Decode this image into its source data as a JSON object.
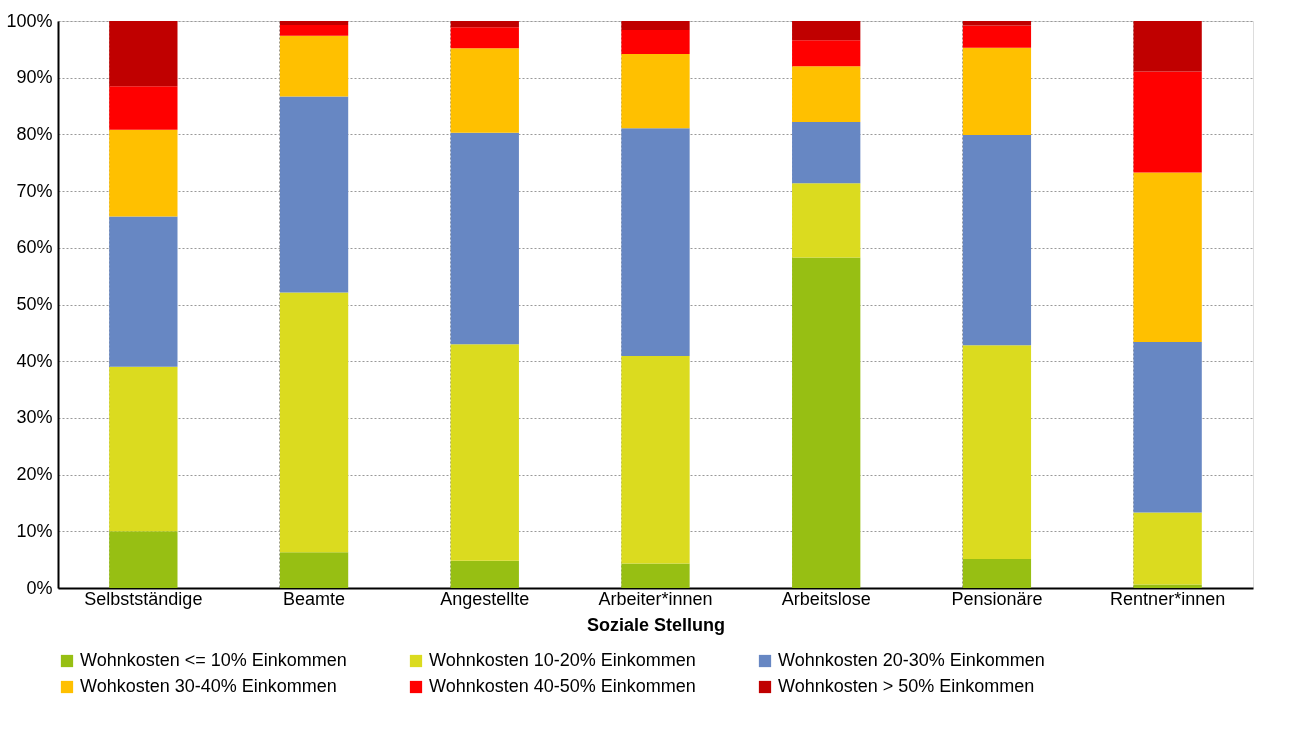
{
  "chart_data": {
    "type": "bar",
    "stacked": true,
    "xlabel": "Soziale Stellung",
    "categories": [
      "Selbstständige",
      "Beamte",
      "Angestellte",
      "Arbeiter*innen",
      "Arbeitslose",
      "Pensionäre",
      "Rentner*innen"
    ],
    "series": [
      {
        "name": "Wohnkosten <= 10% Einkommen",
        "color": "#97bf13",
        "values": [
          10.0,
          6.3,
          4.8,
          4.3,
          58.3,
          5.1,
          0.6
        ]
      },
      {
        "name": "Wohnkosten 10-20% Einkommen",
        "color": "#dbdb1f",
        "values": [
          29.0,
          45.8,
          38.2,
          36.6,
          13.1,
          37.7,
          12.7
        ]
      },
      {
        "name": "Wohnkosten 20-30% Einkommen",
        "color": "#6787c3",
        "values": [
          26.5,
          34.6,
          37.3,
          40.2,
          10.8,
          37.1,
          30.1
        ]
      },
      {
        "name": "Wohkosten 30-40% Einkommen",
        "color": "#ffc000",
        "values": [
          15.3,
          10.7,
          14.9,
          13.1,
          9.8,
          15.4,
          29.9
        ]
      },
      {
        "name": "Wohnkosten 40-50% Einkommen",
        "color": "#ff0000",
        "values": [
          7.7,
          1.9,
          3.7,
          4.2,
          4.6,
          3.9,
          17.8
        ]
      },
      {
        "name": "Wohnkosten > 50% Einkommen",
        "color": "#c00000",
        "values": [
          11.5,
          0.7,
          1.1,
          1.6,
          3.4,
          0.8,
          8.9
        ]
      }
    ],
    "ylim": [
      0,
      100
    ],
    "yticks": [
      {
        "value": 0,
        "label": "0%"
      },
      {
        "value": 10,
        "label": "10%"
      },
      {
        "value": 20,
        "label": "20%"
      },
      {
        "value": 30,
        "label": "30%"
      },
      {
        "value": 40,
        "label": "40%"
      },
      {
        "value": 50,
        "label": "50%"
      },
      {
        "value": 60,
        "label": "60%"
      },
      {
        "value": 70,
        "label": "70%"
      },
      {
        "value": 80,
        "label": "80%"
      },
      {
        "value": 90,
        "label": "90%"
      },
      {
        "value": 100,
        "label": "100%"
      }
    ],
    "grid": true,
    "legend": "bottom"
  }
}
